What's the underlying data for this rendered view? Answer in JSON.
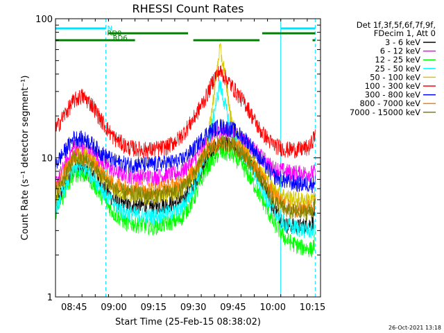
{
  "chart_data": {
    "type": "line",
    "title": "RHESSI Count Rates",
    "xlabel": "Start Time (25-Feb-15 08:38:02)",
    "ylabel": "Count Rate (s⁻¹ detector segment⁻¹)",
    "ylim": [
      1,
      100
    ],
    "yscale": "log",
    "y_ticks": [
      "1",
      "10",
      "100"
    ],
    "xlim": [
      "08:38",
      "10:18"
    ],
    "x_ticks": [
      "08:45",
      "09:00",
      "09:15",
      "09:30",
      "09:45",
      "10:00",
      "10:15"
    ],
    "legend": {
      "placement": "right",
      "header": [
        "Det 1f,3f,5f,6f,7f,9f,",
        "FDecim 1, Att 0"
      ]
    },
    "footer": "26-Oct-2021 13:18",
    "attenuator_bars": [
      {
        "label": "N",
        "color": "#00e5ff",
        "segments": [
          [
            "08:38",
            "08:57"
          ],
          [
            "10:03",
            "10:16"
          ]
        ]
      },
      {
        "label": "RD0",
        "color": "#008000",
        "segments": [
          [
            "08:58",
            "09:28"
          ],
          [
            "09:56",
            "10:16"
          ]
        ]
      },
      {
        "label": "RD6",
        "color": "#008000",
        "segments": [
          [
            "08:38",
            "09:08"
          ],
          [
            "09:30",
            "09:55"
          ],
          [
            "10:15",
            "10:16"
          ]
        ]
      }
    ],
    "vertical_markers": [
      {
        "time": "08:38",
        "color": "#00e5ff",
        "style": "solid"
      },
      {
        "time": "08:57",
        "color": "#00e5ff",
        "style": "dashed"
      },
      {
        "time": "10:03",
        "color": "#00e5ff",
        "style": "solid"
      },
      {
        "time": "10:16",
        "color": "#00e5ff",
        "style": "dashed"
      }
    ],
    "series": [
      {
        "name": "3 - 6 keV",
        "color": "#000000",
        "points": [
          [
            "08:38",
            4.6
          ],
          [
            "08:45",
            8.5
          ],
          [
            "08:50",
            8.0
          ],
          [
            "08:55",
            6.5
          ],
          [
            "09:00",
            5.0
          ],
          [
            "09:05",
            4.6
          ],
          [
            "09:15",
            4.5
          ],
          [
            "09:25",
            4.8
          ],
          [
            "09:30",
            6.3
          ],
          [
            "09:35",
            9.5
          ],
          [
            "09:40",
            12.5
          ],
          [
            "09:45",
            12.2
          ],
          [
            "09:50",
            10.2
          ],
          [
            "09:55",
            7.5
          ],
          [
            "10:00",
            4.5
          ],
          [
            "10:05",
            3.3
          ],
          [
            "10:10",
            3.2
          ],
          [
            "10:15",
            3.4
          ],
          [
            "10:16",
            4.5
          ]
        ]
      },
      {
        "name": "6 - 12 keV",
        "color": "#ff00ff",
        "points": [
          [
            "08:38",
            6.5
          ],
          [
            "08:45",
            12.0
          ],
          [
            "08:50",
            11.5
          ],
          [
            "08:55",
            9.5
          ],
          [
            "09:00",
            8.0
          ],
          [
            "09:05",
            7.5
          ],
          [
            "09:15",
            7.3
          ],
          [
            "09:25",
            7.8
          ],
          [
            "09:30",
            9.5
          ],
          [
            "09:35",
            13.0
          ],
          [
            "09:40",
            15.5
          ],
          [
            "09:45",
            15.0
          ],
          [
            "09:50",
            13.0
          ],
          [
            "09:55",
            10.5
          ],
          [
            "10:00",
            8.5
          ],
          [
            "10:05",
            8.0
          ],
          [
            "10:10",
            7.8
          ],
          [
            "10:15",
            7.8
          ],
          [
            "10:16",
            8.0
          ]
        ]
      },
      {
        "name": "12 - 25 keV",
        "color": "#00ff00",
        "points": [
          [
            "08:38",
            4.1
          ],
          [
            "08:45",
            7.8
          ],
          [
            "08:50",
            7.5
          ],
          [
            "08:55",
            5.5
          ],
          [
            "09:00",
            4.0
          ],
          [
            "09:05",
            3.4
          ],
          [
            "09:15",
            3.2
          ],
          [
            "09:25",
            3.6
          ],
          [
            "09:30",
            5.0
          ],
          [
            "09:35",
            8.5
          ],
          [
            "09:40",
            11.0
          ],
          [
            "09:45",
            10.5
          ],
          [
            "09:50",
            8.0
          ],
          [
            "09:55",
            5.5
          ],
          [
            "10:00",
            3.5
          ],
          [
            "10:05",
            2.6
          ],
          [
            "10:10",
            2.3
          ],
          [
            "10:15",
            2.2
          ],
          [
            "10:16",
            2.6
          ]
        ]
      },
      {
        "name": "25 - 50 keV",
        "color": "#00ffff",
        "points": [
          [
            "08:38",
            4.4
          ],
          [
            "08:45",
            8.5
          ],
          [
            "08:50",
            8.2
          ],
          [
            "08:55",
            6.2
          ],
          [
            "09:00",
            4.6
          ],
          [
            "09:05",
            4.0
          ],
          [
            "09:15",
            3.8
          ],
          [
            "09:25",
            4.2
          ],
          [
            "09:30",
            6.0
          ],
          [
            "09:35",
            10.5
          ],
          [
            "09:38",
            22.0
          ],
          [
            "09:40",
            34.0
          ],
          [
            "09:42",
            24.0
          ],
          [
            "09:45",
            14.0
          ],
          [
            "09:50",
            10.0
          ],
          [
            "09:55",
            6.5
          ],
          [
            "10:00",
            4.2
          ],
          [
            "10:05",
            3.3
          ],
          [
            "10:10",
            3.1
          ],
          [
            "10:15",
            3.0
          ],
          [
            "10:16",
            3.2
          ]
        ]
      },
      {
        "name": "50 - 100 keV",
        "color": "#d4c800",
        "points": [
          [
            "08:38",
            5.0
          ],
          [
            "08:45",
            10.0
          ],
          [
            "08:50",
            10.5
          ],
          [
            "08:55",
            8.0
          ],
          [
            "09:00",
            6.0
          ],
          [
            "09:05",
            5.5
          ],
          [
            "09:15",
            5.3
          ],
          [
            "09:25",
            5.8
          ],
          [
            "09:30",
            7.5
          ],
          [
            "09:35",
            11.5
          ],
          [
            "09:37",
            22.0
          ],
          [
            "09:40",
            62.0
          ],
          [
            "09:42",
            40.0
          ],
          [
            "09:44",
            20.0
          ],
          [
            "09:47",
            13.5
          ],
          [
            "09:50",
            11.5
          ],
          [
            "09:55",
            8.5
          ],
          [
            "10:00",
            6.0
          ],
          [
            "10:05",
            5.3
          ],
          [
            "10:10",
            5.0
          ],
          [
            "10:15",
            5.0
          ],
          [
            "10:16",
            5.3
          ]
        ]
      },
      {
        "name": "100 - 300 keV",
        "color": "#ff0000",
        "points": [
          [
            "08:38",
            16.0
          ],
          [
            "08:41",
            20.0
          ],
          [
            "08:45",
            26.0
          ],
          [
            "08:48",
            28.0
          ],
          [
            "08:52",
            24.0
          ],
          [
            "08:55",
            19.0
          ],
          [
            "09:00",
            14.0
          ],
          [
            "09:05",
            12.0
          ],
          [
            "09:10",
            11.5
          ],
          [
            "09:15",
            11.5
          ],
          [
            "09:20",
            12.0
          ],
          [
            "09:25",
            14.0
          ],
          [
            "09:30",
            19.0
          ],
          [
            "09:35",
            28.0
          ],
          [
            "09:38",
            38.0
          ],
          [
            "09:40",
            42.0
          ],
          [
            "09:42",
            38.0
          ],
          [
            "09:45",
            32.0
          ],
          [
            "09:50",
            24.0
          ],
          [
            "09:55",
            16.0
          ],
          [
            "10:00",
            12.5
          ],
          [
            "10:05",
            11.5
          ],
          [
            "10:10",
            11.5
          ],
          [
            "10:14",
            12.0
          ],
          [
            "10:16",
            15.0
          ]
        ]
      },
      {
        "name": "300 - 800 keV",
        "color": "#0000ff",
        "points": [
          [
            "08:38",
            9.0
          ],
          [
            "08:45",
            14.0
          ],
          [
            "08:50",
            13.5
          ],
          [
            "08:55",
            11.0
          ],
          [
            "09:00",
            9.5
          ],
          [
            "09:05",
            9.0
          ],
          [
            "09:15",
            9.0
          ],
          [
            "09:25",
            9.5
          ],
          [
            "09:30",
            11.5
          ],
          [
            "09:35",
            15.0
          ],
          [
            "09:40",
            17.0
          ],
          [
            "09:45",
            16.0
          ],
          [
            "09:50",
            13.5
          ],
          [
            "09:55",
            10.0
          ],
          [
            "10:00",
            7.5
          ],
          [
            "10:05",
            6.8
          ],
          [
            "10:10",
            6.5
          ],
          [
            "10:15",
            6.5
          ],
          [
            "10:16",
            7.0
          ]
        ]
      },
      {
        "name": "800 - 7000 keV",
        "color": "#ff8000",
        "points": [
          [
            "08:38",
            6.0
          ],
          [
            "08:45",
            10.5
          ],
          [
            "08:50",
            10.0
          ],
          [
            "08:55",
            8.0
          ],
          [
            "09:00",
            6.5
          ],
          [
            "09:05",
            6.2
          ],
          [
            "09:15",
            6.0
          ],
          [
            "09:25",
            6.5
          ],
          [
            "09:30",
            8.0
          ],
          [
            "09:35",
            11.5
          ],
          [
            "09:40",
            13.0
          ],
          [
            "09:45",
            12.5
          ],
          [
            "09:50",
            10.5
          ],
          [
            "09:55",
            8.0
          ],
          [
            "10:00",
            5.5
          ],
          [
            "10:05",
            4.5
          ],
          [
            "10:10",
            4.3
          ],
          [
            "10:15",
            4.5
          ],
          [
            "10:16",
            5.0
          ]
        ]
      },
      {
        "name": "7000 - 15000 keV",
        "color": "#808000",
        "points": [
          [
            "08:38",
            5.5
          ],
          [
            "08:45",
            10.0
          ],
          [
            "08:50",
            9.5
          ],
          [
            "08:55",
            7.5
          ],
          [
            "09:00",
            6.0
          ],
          [
            "09:05",
            5.6
          ],
          [
            "09:15",
            5.4
          ],
          [
            "09:25",
            5.8
          ],
          [
            "09:30",
            7.5
          ],
          [
            "09:35",
            11.0
          ],
          [
            "09:40",
            13.0
          ],
          [
            "09:45",
            12.5
          ],
          [
            "09:50",
            10.0
          ],
          [
            "09:55",
            7.5
          ],
          [
            "10:00",
            5.0
          ],
          [
            "10:05",
            4.2
          ],
          [
            "10:10",
            4.0
          ],
          [
            "10:15",
            4.2
          ],
          [
            "10:16",
            4.6
          ]
        ]
      }
    ]
  }
}
